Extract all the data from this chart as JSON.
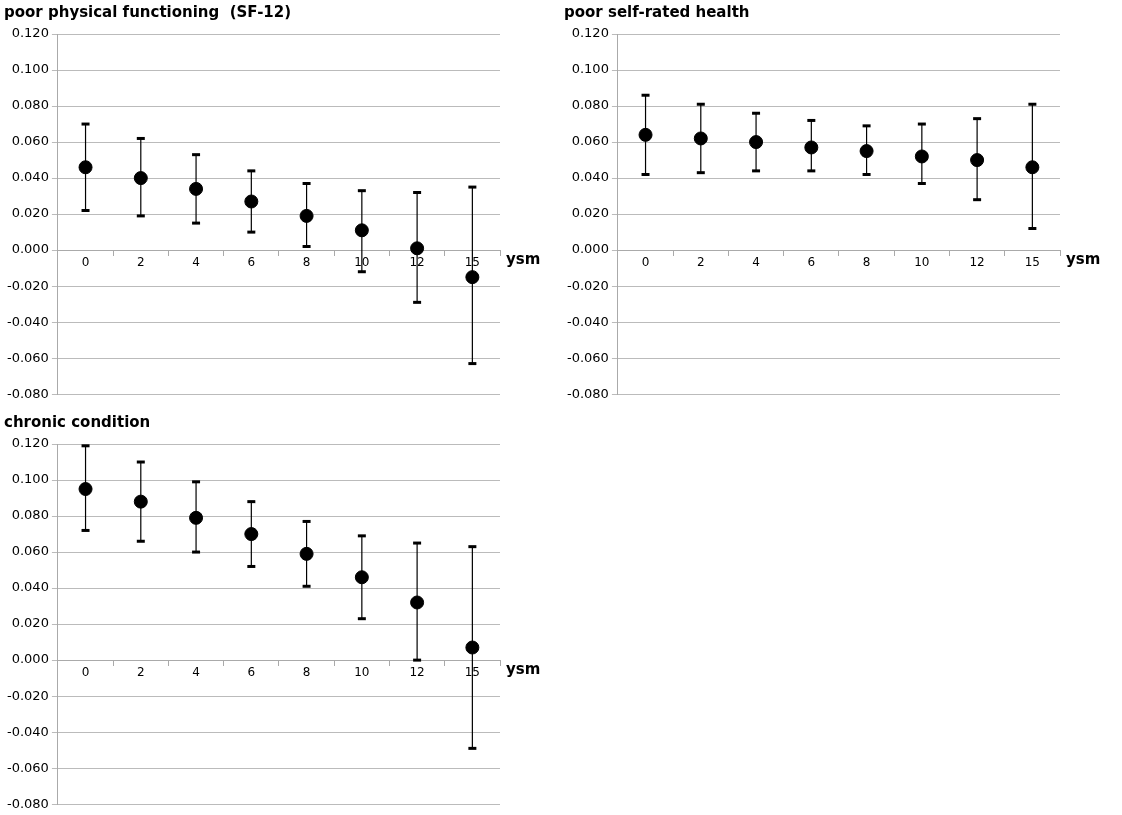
{
  "chart_data": [
    {
      "type": "scatter",
      "title": "poor physical functioning  (SF-12)",
      "xlabel": "ysm",
      "categories": [
        "0",
        "2",
        "4",
        "6",
        "8",
        "10",
        "12",
        "15"
      ],
      "color": "#000000",
      "marker": "circle",
      "grid": "y",
      "legend": false,
      "values": [
        0.046,
        0.04,
        0.034,
        0.027,
        0.019,
        0.011,
        0.001,
        -0.015
      ],
      "errors": [
        [
          0.022,
          0.07
        ],
        [
          0.019,
          0.062
        ],
        [
          0.015,
          0.053
        ],
        [
          0.01,
          0.044
        ],
        [
          0.002,
          0.037
        ],
        [
          -0.012,
          0.033
        ],
        [
          -0.029,
          0.032
        ],
        [
          -0.063,
          0.035
        ]
      ],
      "ylim": [
        -0.08,
        0.12
      ],
      "yticks": [
        {
          "value": -0.08,
          "label": "-0.080"
        },
        {
          "value": -0.06,
          "label": "-0.060"
        },
        {
          "value": -0.04,
          "label": "-0.040"
        },
        {
          "value": -0.02,
          "label": "-0.020"
        },
        {
          "value": 0,
          "label": "0.000"
        },
        {
          "value": 0.02,
          "label": "0.020"
        },
        {
          "value": 0.04,
          "label": "0.040"
        },
        {
          "value": 0.06,
          "label": "0.060"
        },
        {
          "value": 0.08,
          "label": "0.080"
        },
        {
          "value": 0.1,
          "label": "0.100"
        },
        {
          "value": 0.12,
          "label": "0.120"
        }
      ]
    },
    {
      "type": "scatter",
      "title": "poor self-rated health",
      "xlabel": "ysm",
      "categories": [
        "0",
        "2",
        "4",
        "6",
        "8",
        "10",
        "12",
        "15"
      ],
      "color": "#000000",
      "marker": "circle",
      "grid": "y",
      "legend": false,
      "values": [
        0.064,
        0.062,
        0.06,
        0.057,
        0.055,
        0.052,
        0.05,
        0.046
      ],
      "errors": [
        [
          0.042,
          0.086
        ],
        [
          0.043,
          0.081
        ],
        [
          0.044,
          0.076
        ],
        [
          0.044,
          0.072
        ],
        [
          0.042,
          0.069
        ],
        [
          0.037,
          0.07
        ],
        [
          0.028,
          0.073
        ],
        [
          0.012,
          0.081
        ]
      ],
      "ylim": [
        -0.08,
        0.12
      ],
      "yticks": [
        {
          "value": -0.08,
          "label": "-0.080"
        },
        {
          "value": -0.06,
          "label": "-0.060"
        },
        {
          "value": -0.04,
          "label": "-0.040"
        },
        {
          "value": -0.02,
          "label": "-0.020"
        },
        {
          "value": 0,
          "label": "0.000"
        },
        {
          "value": 0.02,
          "label": "0.020"
        },
        {
          "value": 0.04,
          "label": "0.040"
        },
        {
          "value": 0.06,
          "label": "0.060"
        },
        {
          "value": 0.08,
          "label": "0.080"
        },
        {
          "value": 0.1,
          "label": "0.100"
        },
        {
          "value": 0.12,
          "label": "0.120"
        }
      ]
    },
    {
      "type": "scatter",
      "title": "chronic condition",
      "xlabel": "ysm",
      "categories": [
        "0",
        "2",
        "4",
        "6",
        "8",
        "10",
        "12",
        "15"
      ],
      "color": "#000000",
      "marker": "circle",
      "grid": "y",
      "legend": false,
      "values": [
        0.095,
        0.088,
        0.079,
        0.07,
        0.059,
        0.046,
        0.032,
        0.007
      ],
      "errors": [
        [
          0.072,
          0.119
        ],
        [
          0.066,
          0.11
        ],
        [
          0.06,
          0.099
        ],
        [
          0.052,
          0.088
        ],
        [
          0.041,
          0.077
        ],
        [
          0.023,
          0.069
        ],
        [
          0.0,
          0.065
        ],
        [
          -0.049,
          0.063
        ]
      ],
      "ylim": [
        -0.08,
        0.12
      ],
      "yticks": [
        {
          "value": -0.08,
          "label": "-0.080"
        },
        {
          "value": -0.06,
          "label": "-0.060"
        },
        {
          "value": -0.04,
          "label": "-0.040"
        },
        {
          "value": -0.02,
          "label": "-0.020"
        },
        {
          "value": 0,
          "label": "0.000"
        },
        {
          "value": 0.02,
          "label": "0.020"
        },
        {
          "value": 0.04,
          "label": "0.040"
        },
        {
          "value": 0.06,
          "label": "0.060"
        },
        {
          "value": 0.08,
          "label": "0.080"
        },
        {
          "value": 0.1,
          "label": "0.100"
        },
        {
          "value": 0.12,
          "label": "0.120"
        }
      ]
    }
  ]
}
